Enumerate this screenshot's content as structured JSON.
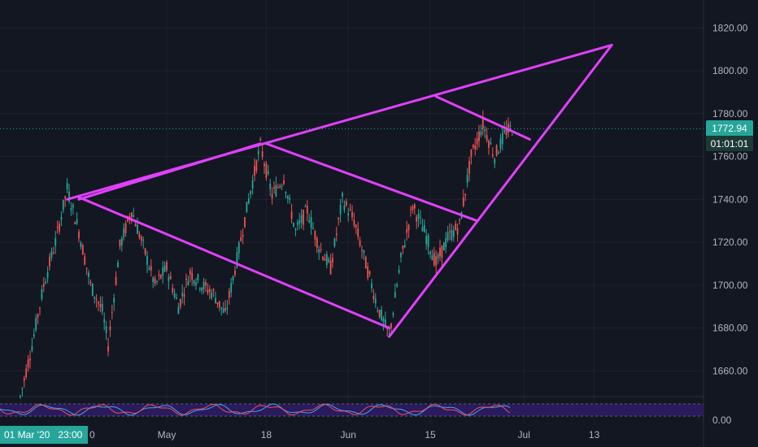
{
  "chart_data": {
    "type": "candlestick",
    "instrument_view": "price chart with drawn trendlines and oscillator pane",
    "y_ticks": [
      "1820.00",
      "1800.00",
      "1780.00",
      "1760.00",
      "1740.00",
      "1720.00",
      "1700.00",
      "1680.00",
      "1660.00"
    ],
    "ylim": [
      1648,
      1833
    ],
    "x_ticks": [
      {
        "label": "May",
        "date": "2020-05-01"
      },
      {
        "label": "18",
        "date": "2020-05-18"
      },
      {
        "label": "Jun",
        "date": "2020-06-01"
      },
      {
        "label": "15",
        "date": "2020-06-15"
      },
      {
        "label": "Jul",
        "date": "2020-07-01"
      },
      {
        "label": "13",
        "date": "2020-07-13"
      }
    ],
    "x_label_partial": "0",
    "last_price": "1772.94",
    "last_price_value": 1772.94,
    "countdown": "01:01:01",
    "crosshair_time": "01 Mar '20   23:00",
    "oscillator_tick": "0.00",
    "colors": {
      "background": "#131722",
      "up": "#26a69a",
      "down": "#ef5350",
      "trendline": "#e040fb",
      "price_line": "#26a69a",
      "osc_band": "#2a1a5e",
      "osc_line_a": "#ef5350",
      "osc_line_b": "#42a5f5"
    },
    "price_path": [
      [
        "2020-04-06",
        1648
      ],
      [
        "2020-04-08",
        1672
      ],
      [
        "2020-04-10",
        1700
      ],
      [
        "2020-04-12",
        1720
      ],
      [
        "2020-04-14",
        1745
      ],
      [
        "2020-04-16",
        1725
      ],
      [
        "2020-04-18",
        1700
      ],
      [
        "2020-04-20",
        1688
      ],
      [
        "2020-04-21",
        1672
      ],
      [
        "2020-04-23",
        1718
      ],
      [
        "2020-04-25",
        1735
      ],
      [
        "2020-04-27",
        1718
      ],
      [
        "2020-04-29",
        1700
      ],
      [
        "2020-05-01",
        1708
      ],
      [
        "2020-05-03",
        1690
      ],
      [
        "2020-05-05",
        1706
      ],
      [
        "2020-05-07",
        1700
      ],
      [
        "2020-05-09",
        1696
      ],
      [
        "2020-05-11",
        1686
      ],
      [
        "2020-05-13",
        1712
      ],
      [
        "2020-05-15",
        1740
      ],
      [
        "2020-05-17",
        1765
      ],
      [
        "2020-05-19",
        1742
      ],
      [
        "2020-05-21",
        1750
      ],
      [
        "2020-05-23",
        1725
      ],
      [
        "2020-05-25",
        1735
      ],
      [
        "2020-05-27",
        1718
      ],
      [
        "2020-05-29",
        1708
      ],
      [
        "2020-05-31",
        1740
      ],
      [
        "2020-06-02",
        1730
      ],
      [
        "2020-06-04",
        1710
      ],
      [
        "2020-06-06",
        1690
      ],
      [
        "2020-06-08",
        1676
      ],
      [
        "2020-06-10",
        1712
      ],
      [
        "2020-06-12",
        1737
      ],
      [
        "2020-06-14",
        1725
      ],
      [
        "2020-06-16",
        1710
      ],
      [
        "2020-06-18",
        1722
      ],
      [
        "2020-06-20",
        1728
      ],
      [
        "2020-06-22",
        1760
      ],
      [
        "2020-06-24",
        1775
      ],
      [
        "2020-06-26",
        1760
      ],
      [
        "2020-06-28",
        1772
      ],
      [
        "2020-06-29",
        1772.94
      ]
    ],
    "trendlines": [
      {
        "name": "upper-wedge",
        "from": [
          "2020-04-14",
          1740
        ],
        "to": [
          "2020-07-16",
          1812
        ]
      },
      {
        "name": "lower-wedge",
        "from": [
          "2020-06-08",
          1676
        ],
        "to": [
          "2020-07-16",
          1812
        ]
      },
      {
        "name": "channel-top",
        "from": [
          "2020-04-16",
          1740
        ],
        "to": [
          "2020-05-17",
          1766
        ]
      },
      {
        "name": "channel-a",
        "from": [
          "2020-04-16",
          1741
        ],
        "to": [
          "2020-06-08",
          1680
        ]
      },
      {
        "name": "channel-b",
        "from": [
          "2020-05-18",
          1766
        ],
        "to": [
          "2020-06-23",
          1730
        ]
      },
      {
        "name": "channel-c",
        "from": [
          "2020-06-16",
          1788
        ],
        "to": [
          "2020-07-02",
          1768
        ]
      }
    ]
  }
}
